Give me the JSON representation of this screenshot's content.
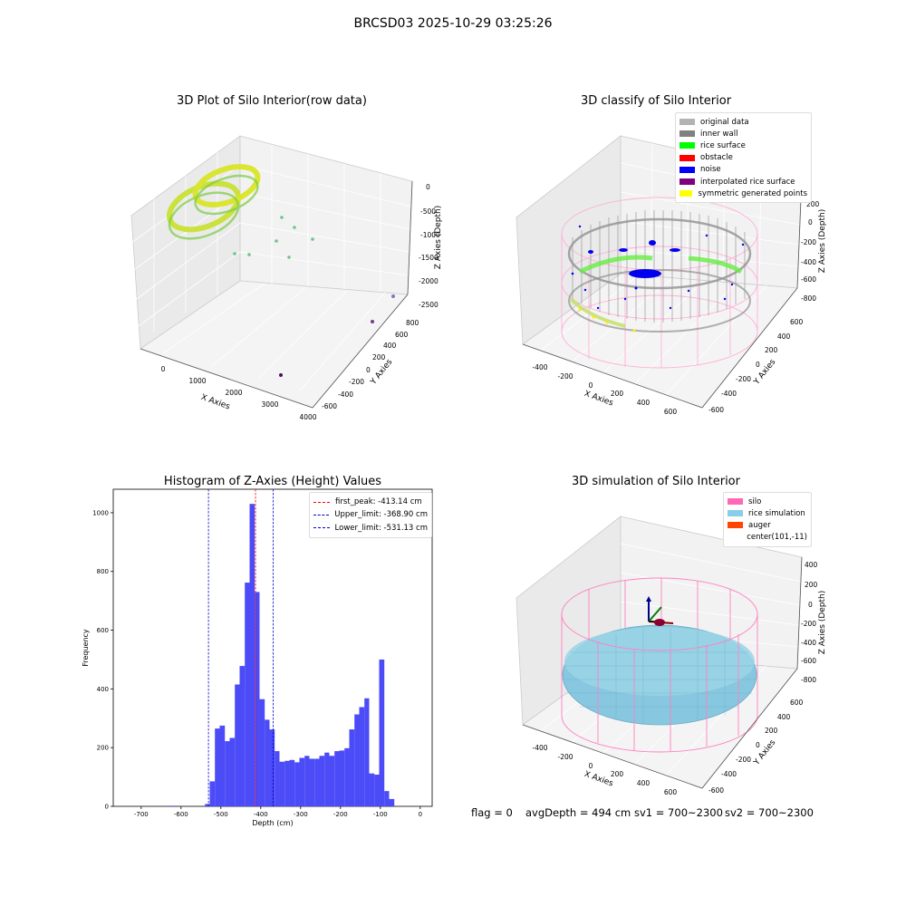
{
  "figure": {
    "suptitle": "BRCSD03 2025-10-29 03:25:26"
  },
  "panels": {
    "raw": {
      "title": "3D Plot of Silo Interior(row data)",
      "xlabel": "X Axies",
      "ylabel": "Y Axies",
      "zlabel": "Z Axies (Depth)",
      "x_ticks": [
        "0",
        "1000",
        "2000",
        "3000",
        "4000"
      ],
      "y_ticks": [
        "-600",
        "-400",
        "-200",
        "0",
        "200",
        "400",
        "600",
        "800"
      ],
      "z_ticks": [
        "0",
        "-500",
        "-1000",
        "-1500",
        "-2000",
        "-2500"
      ]
    },
    "classify": {
      "title": "3D classify of Silo Interior",
      "xlabel": "X Axies",
      "ylabel": "Y Axies",
      "zlabel": "Z Axies (Depth)",
      "x_ticks": [
        "-400",
        "-200",
        "0",
        "200",
        "400",
        "600"
      ],
      "y_ticks": [
        "-600",
        "-400",
        "-200",
        "0",
        "200",
        "400",
        "600"
      ],
      "z_ticks": [
        "200",
        "0",
        "-200",
        "-400",
        "-600",
        "-800"
      ],
      "legend": [
        {
          "label": "original data",
          "color": "#b3b3b3"
        },
        {
          "label": "inner wall",
          "color": "#808080"
        },
        {
          "label": "rice surface",
          "color": "#00ff00"
        },
        {
          "label": "obstacle",
          "color": "#ff0000"
        },
        {
          "label": "noise",
          "color": "#0000ff"
        },
        {
          "label": "interpolated rice surface",
          "color": "#800080"
        },
        {
          "label": "symmetric generated points",
          "color": "#ffff00"
        }
      ]
    },
    "histogram": {
      "title": "Histogram of Z-Axies (Height) Values",
      "xlabel": "Depth (cm)",
      "ylabel": "Frequency",
      "x_ticks": [
        "-700",
        "-600",
        "-500",
        "-400",
        "-300",
        "-200",
        "-100",
        "0"
      ],
      "y_ticks": [
        "0",
        "200",
        "400",
        "600",
        "800",
        "1000"
      ],
      "legend": [
        {
          "label": "first_peak: -413.14 cm",
          "color": "#ff0000"
        },
        {
          "label": "Upper_limit: -368.90 cm",
          "color": "#0000cc"
        },
        {
          "label": "Lower_limit: -531.13 cm",
          "color": "#0000cc"
        }
      ]
    },
    "simulation": {
      "title": "3D simulation of Silo Interior",
      "xlabel": "X Axies",
      "ylabel": "Y Axies",
      "zlabel": "Z Axies (Depth)",
      "x_ticks": [
        "-400",
        "-200",
        "0",
        "200",
        "400",
        "600"
      ],
      "y_ticks": [
        "-600",
        "-400",
        "-200",
        "0",
        "200",
        "400",
        "600"
      ],
      "z_ticks": [
        "400",
        "200",
        "0",
        "-200",
        "-400",
        "-600",
        "-800"
      ],
      "legend": [
        {
          "label": "silo",
          "color": "#ff69b4"
        },
        {
          "label": "rice simulation",
          "color": "#87ceeb"
        },
        {
          "label": "auger",
          "color": "#ff4500"
        },
        {
          "label": "center(101,-11)",
          "color": ""
        }
      ]
    }
  },
  "footer": {
    "flag": "flag = 0",
    "avg_depth": "avgDepth = 494 cm",
    "sv1": "sv1 = 700~2300",
    "sv2": "sv2 = 700~2300"
  },
  "chart_data": [
    {
      "type": "scatter",
      "title": "3D Plot of Silo Interior(row data)",
      "xlabel": "X Axies",
      "ylabel": "Y Axies",
      "zlabel": "Z Axies (Depth)",
      "xlim": [
        -700,
        4000
      ],
      "ylim": [
        -600,
        800
      ],
      "zlim": [
        -2700,
        0
      ]
    },
    {
      "type": "scatter",
      "title": "3D classify of Silo Interior",
      "xlabel": "X Axies",
      "ylabel": "Y Axies",
      "zlabel": "Z Axies (Depth)",
      "series": [
        {
          "name": "original data"
        },
        {
          "name": "inner wall"
        },
        {
          "name": "rice surface"
        },
        {
          "name": "obstacle"
        },
        {
          "name": "noise"
        },
        {
          "name": "interpolated rice surface"
        },
        {
          "name": "symmetric generated points"
        }
      ],
      "legend": "top-right"
    },
    {
      "type": "bar",
      "title": "Histogram of Z-Axies (Height) Values",
      "xlabel": "Depth (cm)",
      "ylabel": "Frequency",
      "xlim": [
        -770,
        30
      ],
      "ylim": [
        0,
        1080
      ],
      "bin_width": 12.5,
      "bins": [
        {
          "x0": -628,
          "x1": -615,
          "count": 2
        },
        {
          "x0": -540,
          "x1": -528,
          "count": 8
        },
        {
          "x0": -528,
          "x1": -515,
          "count": 85
        },
        {
          "x0": -515,
          "x1": -503,
          "count": 265
        },
        {
          "x0": -503,
          "x1": -490,
          "count": 275
        },
        {
          "x0": -490,
          "x1": -478,
          "count": 222
        },
        {
          "x0": -478,
          "x1": -465,
          "count": 233
        },
        {
          "x0": -465,
          "x1": -453,
          "count": 415
        },
        {
          "x0": -453,
          "x1": -440,
          "count": 478
        },
        {
          "x0": -440,
          "x1": -428,
          "count": 762
        },
        {
          "x0": -428,
          "x1": -415,
          "count": 1030
        },
        {
          "x0": -415,
          "x1": -403,
          "count": 730
        },
        {
          "x0": -403,
          "x1": -390,
          "count": 365
        },
        {
          "x0": -390,
          "x1": -378,
          "count": 295
        },
        {
          "x0": -378,
          "x1": -365,
          "count": 262
        },
        {
          "x0": -365,
          "x1": -353,
          "count": 188
        },
        {
          "x0": -353,
          "x1": -340,
          "count": 152
        },
        {
          "x0": -340,
          "x1": -328,
          "count": 155
        },
        {
          "x0": -328,
          "x1": -315,
          "count": 158
        },
        {
          "x0": -315,
          "x1": -303,
          "count": 150
        },
        {
          "x0": -303,
          "x1": -290,
          "count": 165
        },
        {
          "x0": -290,
          "x1": -278,
          "count": 172
        },
        {
          "x0": -278,
          "x1": -265,
          "count": 162
        },
        {
          "x0": -265,
          "x1": -253,
          "count": 162
        },
        {
          "x0": -253,
          "x1": -240,
          "count": 172
        },
        {
          "x0": -240,
          "x1": -228,
          "count": 183
        },
        {
          "x0": -228,
          "x1": -215,
          "count": 172
        },
        {
          "x0": -215,
          "x1": -203,
          "count": 188
        },
        {
          "x0": -203,
          "x1": -190,
          "count": 190
        },
        {
          "x0": -190,
          "x1": -178,
          "count": 198
        },
        {
          "x0": -178,
          "x1": -165,
          "count": 262
        },
        {
          "x0": -165,
          "x1": -153,
          "count": 313
        },
        {
          "x0": -153,
          "x1": -140,
          "count": 338
        },
        {
          "x0": -140,
          "x1": -128,
          "count": 368
        },
        {
          "x0": -128,
          "x1": -115,
          "count": 112
        },
        {
          "x0": -115,
          "x1": -103,
          "count": 108
        },
        {
          "x0": -103,
          "x1": -90,
          "count": 500
        },
        {
          "x0": -90,
          "x1": -78,
          "count": 52
        },
        {
          "x0": -78,
          "x1": -65,
          "count": 25
        }
      ],
      "lines": [
        {
          "name": "first_peak",
          "x": -413.14,
          "color": "#ff0000"
        },
        {
          "name": "Upper_limit",
          "x": -368.9,
          "color": "#0000cc"
        },
        {
          "name": "Lower_limit",
          "x": -531.13,
          "color": "#0000cc"
        }
      ],
      "legend": "top-right"
    },
    {
      "type": "scatter",
      "title": "3D simulation of Silo Interior",
      "xlabel": "X Axies",
      "ylabel": "Y Axies",
      "zlabel": "Z Axies (Depth)",
      "series": [
        {
          "name": "silo"
        },
        {
          "name": "rice simulation"
        },
        {
          "name": "auger"
        }
      ],
      "center": [
        101,
        -11
      ],
      "legend": "top-right"
    }
  ]
}
